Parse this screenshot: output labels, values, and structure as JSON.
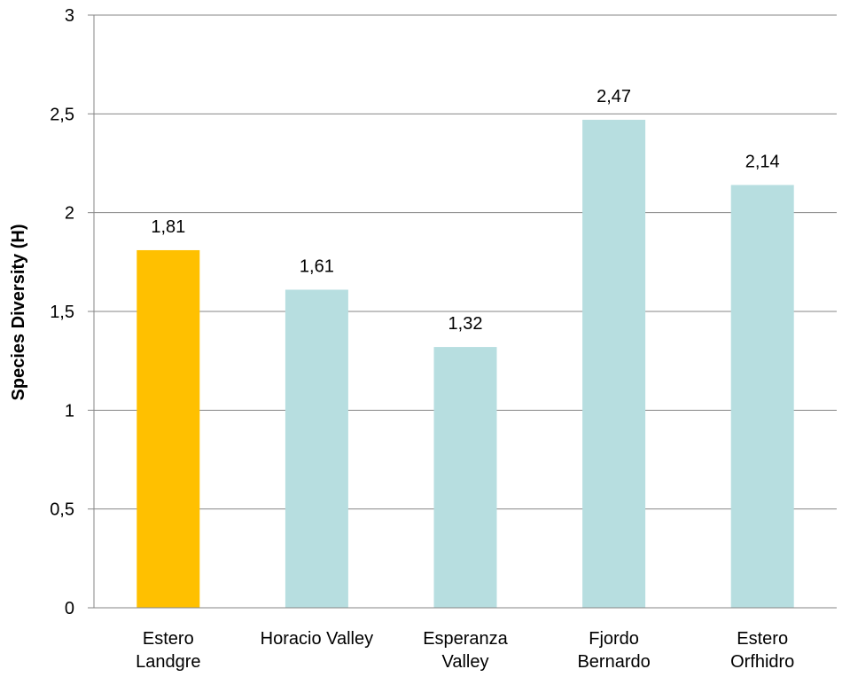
{
  "chart_data": {
    "type": "bar",
    "ylabel": "Species Diversity (H)",
    "xlabel": "",
    "ylim": [
      0,
      3
    ],
    "yticks": [
      "0",
      "0,5",
      "1",
      "1,5",
      "2",
      "2,5",
      "3"
    ],
    "ytick_values": [
      0,
      0.5,
      1,
      1.5,
      2,
      2.5,
      3
    ],
    "grid": "horizontal",
    "legend": "none",
    "categories": [
      [
        "Estero",
        "Landgre"
      ],
      [
        "Horacio Valley"
      ],
      [
        "Esperanza",
        "Valley"
      ],
      [
        "Fjordo",
        "Bernardo"
      ],
      [
        "Estero",
        "Orfhidro"
      ]
    ],
    "values": [
      1.81,
      1.61,
      1.32,
      2.47,
      2.14
    ],
    "value_labels": [
      "1,81",
      "1,61",
      "1,32",
      "2,47",
      "2,14"
    ],
    "colors": [
      "#FFC000",
      "#B7DEE0",
      "#B7DEE0",
      "#B7DEE0",
      "#B7DEE0"
    ]
  }
}
